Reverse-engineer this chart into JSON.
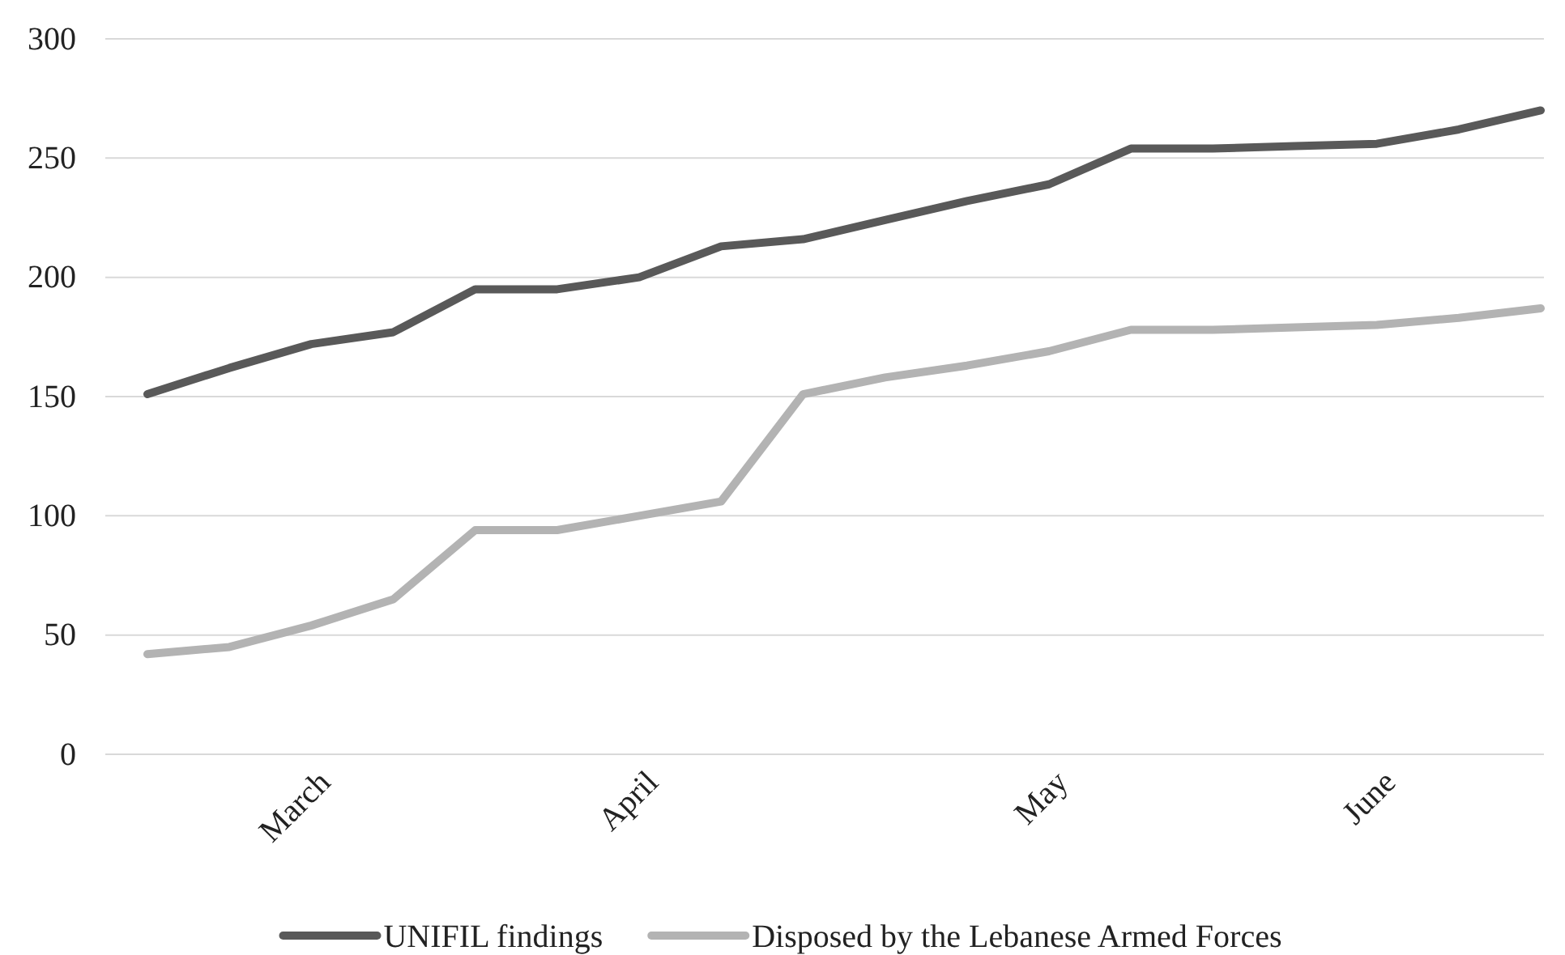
{
  "chart_data": {
    "type": "line",
    "categories": [
      null,
      null,
      "March",
      null,
      null,
      null,
      "April",
      null,
      null,
      null,
      null,
      "May",
      null,
      null,
      null,
      "June",
      null,
      null
    ],
    "series": [
      {
        "name": "UNIFIL findings",
        "color": "#595959",
        "values": [
          151,
          162,
          172,
          177,
          195,
          195,
          200,
          213,
          216,
          224,
          232,
          239,
          254,
          254,
          255,
          256,
          262,
          270
        ]
      },
      {
        "name": "Disposed by the Lebanese Armed Forces",
        "color": "#b3b3b3",
        "values": [
          42,
          45,
          54,
          65,
          94,
          94,
          100,
          106,
          151,
          158,
          163,
          169,
          178,
          178,
          179,
          180,
          183,
          187
        ]
      }
    ],
    "ylim": [
      0,
      300
    ],
    "yticks": [
      0,
      50,
      100,
      150,
      200,
      250,
      300
    ],
    "grid": "y",
    "legend": "bottom",
    "line_style": "solid",
    "marker": "none"
  }
}
